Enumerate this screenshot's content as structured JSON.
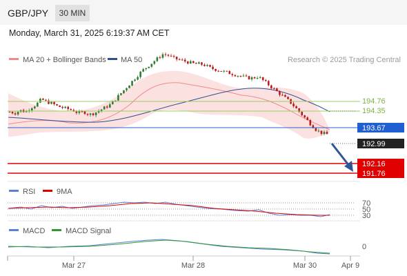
{
  "header": {
    "symbol": "GBP/JPY",
    "timeframe": "30 MIN"
  },
  "date_line": "Monday, March 31, 2025 6:19:37 AM CET",
  "legend": {
    "bb": {
      "label": "MA 20 + Bollinger Bands",
      "color": "#f08a8a"
    },
    "ma50": {
      "label": "MA 50",
      "color": "#2e4f8e"
    }
  },
  "credit": "Research © 2025 Trading Central",
  "rsi_legend": {
    "rsi": "RSI",
    "signal": "9MA"
  },
  "macd_legend": {
    "macd": "MACD",
    "signal": "MACD Signal"
  },
  "colors": {
    "up": "#2e7d2e",
    "down": "#b71c1c",
    "resistance": "#9ccc65",
    "pivot": "#2962cc",
    "support": "#e00000",
    "last": "#222222",
    "arrow": "#2e5596"
  },
  "chart_data": {
    "type": "candlestick",
    "price_axis": {
      "min": 191.3,
      "max": 196.2
    },
    "levels": [
      {
        "name": "resistance",
        "value": 194.76,
        "label": "194.76",
        "style": "line-green"
      },
      {
        "name": "resistance",
        "value": 194.35,
        "label": "194.35",
        "style": "line-green"
      },
      {
        "name": "pivot",
        "value": 193.67,
        "label": "193.67",
        "style": "box-blue"
      },
      {
        "name": "last",
        "value": 192.99,
        "label": "192.99",
        "style": "box-dark"
      },
      {
        "name": "support",
        "value": 192.16,
        "label": "192.16",
        "style": "box-red"
      },
      {
        "name": "support",
        "value": 191.76,
        "label": "191.76",
        "style": "box-red"
      }
    ],
    "x_ticks": [
      "Mar 27",
      "Mar 28",
      "Mar 30",
      "Apr 9"
    ],
    "close_path": [
      193.75,
      193.7,
      193.8,
      193.75,
      193.9,
      194.0,
      194.2,
      194.1,
      194.05,
      193.95,
      193.9,
      193.85,
      193.8,
      193.7,
      193.75,
      193.65,
      193.7,
      193.8,
      193.9,
      194.0,
      194.2,
      194.4,
      194.6,
      194.8,
      195.0,
      195.2,
      195.35,
      195.5,
      195.65,
      195.8,
      195.75,
      195.65,
      195.6,
      195.55,
      195.5,
      195.45,
      195.45,
      195.4,
      195.3,
      195.25,
      195.2,
      195.15,
      195.1,
      195.05,
      195.0,
      194.95,
      194.95,
      195.0,
      194.85,
      194.7,
      194.55,
      194.4,
      194.25,
      194.1,
      193.9,
      193.7,
      193.5,
      193.3,
      193.1,
      193.0,
      192.95
    ],
    "rsi": {
      "levels": [
        70,
        50,
        30
      ]
    },
    "macd": {
      "levels": [
        0
      ]
    }
  }
}
